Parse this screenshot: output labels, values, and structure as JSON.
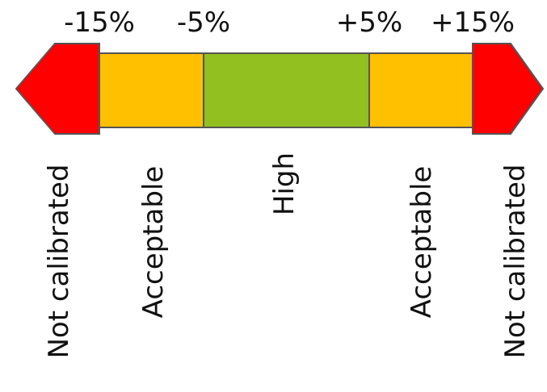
{
  "ticks": {
    "minus_15": "-15%",
    "minus_5": "-5%",
    "plus_5": "+5%",
    "plus_15": "+15%"
  },
  "zones": [
    {
      "label": "Not calibrated",
      "color": "#ff0000"
    },
    {
      "label": "Acceptable",
      "color": "#ffc000"
    },
    {
      "label": "High",
      "color": "#92c020"
    },
    {
      "label": "Acceptable",
      "color": "#ffc000"
    },
    {
      "label": "Not calibrated",
      "color": "#ff0000"
    }
  ],
  "colors": {
    "outline": "#555555",
    "text": "#111111"
  }
}
